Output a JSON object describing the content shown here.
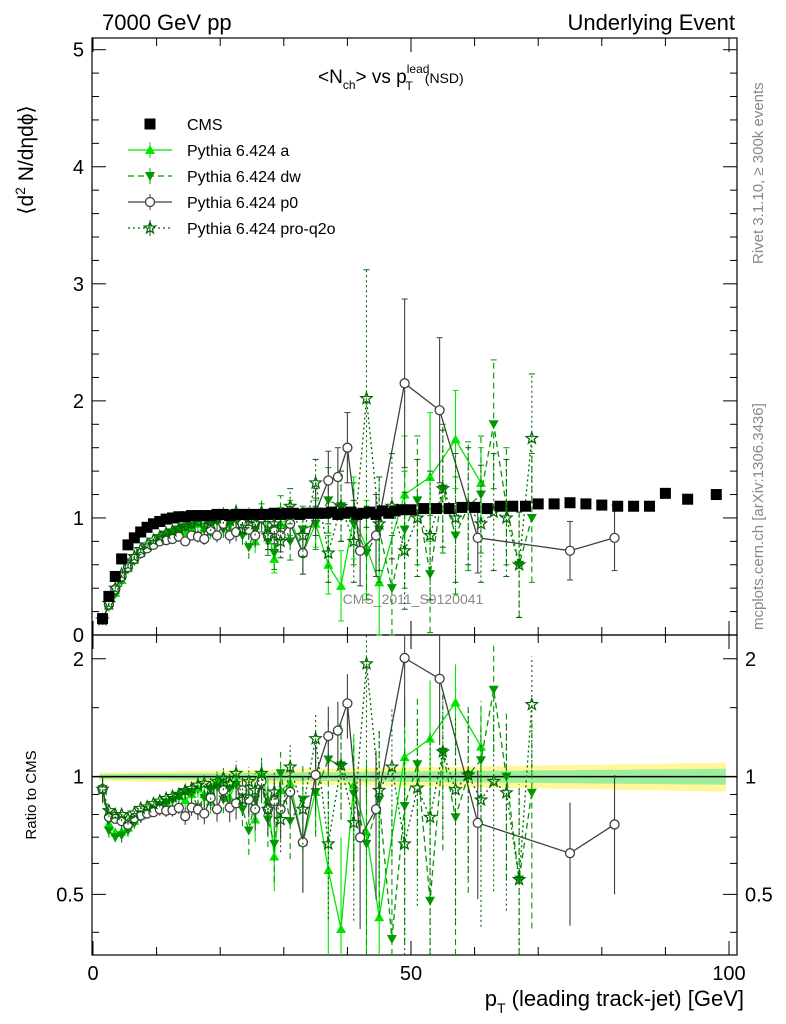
{
  "header": {
    "left": "7000 GeV pp",
    "right": "Underlying Event"
  },
  "side": {
    "top": "Rivet 3.1.10, ≥ 300k events",
    "bottom": "mcplots.cern.ch [arXiv:1306.3436]"
  },
  "watermark": "CMS_2011_S9120041",
  "chart_data": {
    "type": "scatter",
    "title": "<N_ch> vs p_T^lead (NSD)",
    "title_parts": {
      "a": "<N",
      "b": "ch",
      "c": "> vs p",
      "d": "lead",
      "e": "T",
      "f": "(NSD)"
    },
    "xlabel": "p_T (leading track-jet) [GeV]",
    "xlabel_parts": {
      "p": "p",
      "sub": "T",
      "rest": " (leading track-jet) [GeV]"
    },
    "ylabel": "⟨d² N/dηdϕ⟩",
    "ylabel_parts": {
      "a": "⟨d",
      "sup": "2",
      "b": " N/dηdϕ⟩"
    },
    "ratio_ylabel": "Ratio to CMS",
    "xlim": [
      0,
      100
    ],
    "ylim": [
      0,
      5.1
    ],
    "ratio_ylim": [
      0.35,
      2.3
    ],
    "x_ticks": [
      "0",
      "50",
      "100"
    ],
    "y_ticks": [
      "0",
      "1",
      "2",
      "3",
      "4",
      "5"
    ],
    "ratio_ticks": [
      "0.5",
      "1",
      "2"
    ],
    "legend_position": "top-left",
    "colors": {
      "a": "#00e600",
      "dw": "#009900",
      "p0": "#404040",
      "proq2o": "#006600",
      "cms": "#000000"
    },
    "series": [
      {
        "name": "CMS",
        "x": [
          1.5,
          2.5,
          3.5,
          4.5,
          5.5,
          6.5,
          7.5,
          8.5,
          9.5,
          10.5,
          11.5,
          12.5,
          13.5,
          14.5,
          15.5,
          16.5,
          17.5,
          18.5,
          19.5,
          20.5,
          21.5,
          22.5,
          23.5,
          24.5,
          25.5,
          26.5,
          27.5,
          28.5,
          29.5,
          30.5,
          31.5,
          32.5,
          33.5,
          34.5,
          35.5,
          36.5,
          37.5,
          38.5,
          39.5,
          40.5,
          41.5,
          42.5,
          43.5,
          44.5,
          45.5,
          46.5,
          47.5,
          48.5,
          50,
          52,
          54,
          56,
          58,
          60,
          62,
          64,
          66,
          68,
          70,
          72.5,
          75,
          77.5,
          80,
          82.5,
          85,
          87.5,
          90,
          93.5,
          98
        ],
        "y": [
          0.14,
          0.33,
          0.5,
          0.65,
          0.77,
          0.83,
          0.88,
          0.92,
          0.95,
          0.97,
          0.99,
          1.0,
          1.01,
          1.01,
          1.02,
          1.02,
          1.02,
          1.02,
          1.03,
          1.03,
          1.02,
          1.03,
          1.03,
          1.03,
          1.03,
          1.03,
          1.03,
          1.04,
          1.03,
          1.04,
          1.04,
          1.03,
          1.04,
          1.04,
          1.04,
          1.04,
          1.05,
          1.03,
          1.04,
          1.05,
          1.03,
          1.04,
          1.05,
          1.03,
          1.06,
          1.04,
          1.06,
          1.07,
          1.07,
          1.08,
          1.08,
          1.08,
          1.09,
          1.09,
          1.08,
          1.1,
          1.1,
          1.1,
          1.12,
          1.12,
          1.13,
          1.12,
          1.11,
          1.1,
          1.1,
          1.1,
          1.21,
          1.16,
          1.2
        ]
      },
      {
        "name": "Pythia 6.424 a",
        "x": [
          1.5,
          2.5,
          3.5,
          4.5,
          5.5,
          6.5,
          7.5,
          8.5,
          9.5,
          10.5,
          11.5,
          12.5,
          13.5,
          14.5,
          15.5,
          16.5,
          17.5,
          18.5,
          19.5,
          20.5,
          21.5,
          22.5,
          23.5,
          24.5,
          25.5,
          26.5,
          27.5,
          28.5,
          29.5,
          31,
          33,
          35,
          37,
          39,
          41,
          43,
          45,
          49,
          53,
          57,
          61
        ],
        "y": [
          0.13,
          0.25,
          0.36,
          0.47,
          0.57,
          0.64,
          0.7,
          0.75,
          0.79,
          0.82,
          0.85,
          0.88,
          0.9,
          0.88,
          0.92,
          0.95,
          0.92,
          0.88,
          1.0,
          0.98,
          0.9,
          1.0,
          0.95,
          0.92,
          0.8,
          1.05,
          0.9,
          0.65,
          0.95,
          1.0,
          0.7,
          0.95,
          0.6,
          0.42,
          1.0,
          0.75,
          0.45,
          1.2,
          1.35,
          1.67,
          1.3
        ],
        "yerr": [
          0.01,
          0.01,
          0.01,
          0.02,
          0.02,
          0.02,
          0.02,
          0.02,
          0.02,
          0.03,
          0.03,
          0.03,
          0.03,
          0.04,
          0.04,
          0.05,
          0.05,
          0.06,
          0.06,
          0.07,
          0.07,
          0.08,
          0.08,
          0.09,
          0.1,
          0.1,
          0.12,
          0.12,
          0.14,
          0.15,
          0.18,
          0.2,
          0.25,
          0.3,
          0.35,
          0.4,
          0.45,
          0.5,
          0.55,
          0.42,
          0.3
        ]
      },
      {
        "name": "Pythia 6.424 dw",
        "x": [
          1.5,
          2.5,
          3.5,
          4.5,
          5.5,
          6.5,
          7.5,
          8.5,
          9.5,
          10.5,
          11.5,
          12.5,
          13.5,
          14.5,
          15.5,
          16.5,
          17.5,
          18.5,
          19.5,
          20.5,
          21.5,
          22.5,
          23.5,
          24.5,
          25.5,
          26.5,
          27.5,
          28.5,
          29.5,
          31,
          33,
          35,
          37,
          39,
          41,
          43,
          45,
          47,
          49,
          51,
          53,
          55,
          57,
          59,
          61,
          63,
          65,
          67,
          69
        ],
        "y": [
          0.13,
          0.24,
          0.35,
          0.46,
          0.56,
          0.63,
          0.69,
          0.74,
          0.78,
          0.82,
          0.85,
          0.87,
          0.9,
          0.92,
          0.93,
          0.85,
          0.9,
          0.95,
          0.97,
          0.9,
          0.95,
          0.98,
          0.85,
          0.75,
          0.9,
          1.0,
          0.8,
          0.7,
          1.05,
          0.8,
          0.9,
          0.95,
          1.15,
          1.1,
          0.95,
          0.7,
          0.9,
          0.4,
          0.9,
          1.15,
          0.52,
          1.25,
          0.85,
          1.1,
          1.2,
          1.8,
          1.1,
          0.6,
          1.0
        ],
        "yerr": [
          0.01,
          0.01,
          0.01,
          0.02,
          0.02,
          0.02,
          0.02,
          0.02,
          0.02,
          0.03,
          0.03,
          0.03,
          0.03,
          0.04,
          0.04,
          0.05,
          0.05,
          0.06,
          0.06,
          0.07,
          0.07,
          0.08,
          0.08,
          0.1,
          0.1,
          0.12,
          0.12,
          0.14,
          0.14,
          0.16,
          0.2,
          0.22,
          0.28,
          0.3,
          0.35,
          0.4,
          0.45,
          0.45,
          0.5,
          0.55,
          0.5,
          0.55,
          0.5,
          0.55,
          0.5,
          0.55,
          0.5,
          0.45,
          0.55
        ]
      },
      {
        "name": "Pythia 6.424 p0",
        "x": [
          1.5,
          2.5,
          3.5,
          4.5,
          5.5,
          6.5,
          7.5,
          8.5,
          9.5,
          10.5,
          11.5,
          12.5,
          13.5,
          14.5,
          15.5,
          16.5,
          17.5,
          18.5,
          19.5,
          20.5,
          21.5,
          22.5,
          23.5,
          24.5,
          25.5,
          26.5,
          27.5,
          28.5,
          29.5,
          31,
          33,
          35,
          37,
          38.5,
          40,
          42,
          44.5,
          49,
          54.5,
          60.5,
          75,
          82
        ],
        "y": [
          0.13,
          0.26,
          0.39,
          0.5,
          0.58,
          0.65,
          0.7,
          0.74,
          0.77,
          0.8,
          0.81,
          0.82,
          0.84,
          0.8,
          0.85,
          0.84,
          0.82,
          0.9,
          0.85,
          0.95,
          0.85,
          0.88,
          0.95,
          0.9,
          0.85,
          1.0,
          0.85,
          0.9,
          0.85,
          0.95,
          0.7,
          1.05,
          1.32,
          1.35,
          1.6,
          0.72,
          0.85,
          2.15,
          1.92,
          0.83,
          0.72,
          0.83
        ],
        "yerr": [
          0.01,
          0.01,
          0.01,
          0.02,
          0.02,
          0.02,
          0.02,
          0.02,
          0.02,
          0.03,
          0.03,
          0.03,
          0.03,
          0.04,
          0.04,
          0.05,
          0.05,
          0.06,
          0.06,
          0.07,
          0.07,
          0.08,
          0.08,
          0.09,
          0.1,
          0.1,
          0.12,
          0.12,
          0.14,
          0.15,
          0.18,
          0.2,
          0.25,
          0.25,
          0.3,
          0.3,
          0.35,
          0.72,
          0.62,
          0.3,
          0.25,
          0.28
        ]
      },
      {
        "name": "Pythia 6.424 pro-q2o",
        "x": [
          1.5,
          2.5,
          3.5,
          4.5,
          5.5,
          6.5,
          7.5,
          8.5,
          9.5,
          10.5,
          11.5,
          12.5,
          13.5,
          14.5,
          15.5,
          16.5,
          17.5,
          18.5,
          19.5,
          20.5,
          21.5,
          22.5,
          23.5,
          24.5,
          25.5,
          26.5,
          27.5,
          28.5,
          29.5,
          31,
          33,
          35,
          37,
          39,
          41,
          43,
          45,
          47,
          49,
          51,
          53,
          55,
          57,
          59,
          61,
          63,
          65,
          67,
          69
        ],
        "y": [
          0.13,
          0.27,
          0.4,
          0.52,
          0.6,
          0.67,
          0.73,
          0.77,
          0.81,
          0.84,
          0.87,
          0.89,
          0.91,
          0.93,
          0.95,
          0.97,
          0.98,
          0.95,
          1.0,
          1.02,
          0.98,
          1.05,
          0.9,
          1.0,
          0.95,
          1.05,
          0.85,
          0.95,
          0.8,
          1.1,
          0.85,
          1.3,
          0.7,
          1.1,
          0.8,
          2.02,
          0.95,
          1.1,
          0.72,
          1.0,
          0.85,
          1.25,
          1.0,
          1.1,
          0.95,
          1.05,
          1.0,
          0.6,
          1.68
        ],
        "yerr": [
          0.01,
          0.01,
          0.01,
          0.02,
          0.02,
          0.02,
          0.02,
          0.02,
          0.02,
          0.03,
          0.03,
          0.03,
          0.03,
          0.04,
          0.04,
          0.05,
          0.05,
          0.06,
          0.06,
          0.07,
          0.07,
          0.08,
          0.08,
          0.09,
          0.1,
          0.1,
          0.12,
          0.12,
          0.14,
          0.15,
          0.18,
          0.2,
          0.25,
          0.3,
          0.35,
          1.1,
          0.4,
          0.45,
          0.5,
          0.5,
          0.55,
          0.5,
          0.55,
          0.5,
          0.5,
          0.5,
          0.5,
          0.45,
          0.55
        ]
      }
    ]
  }
}
